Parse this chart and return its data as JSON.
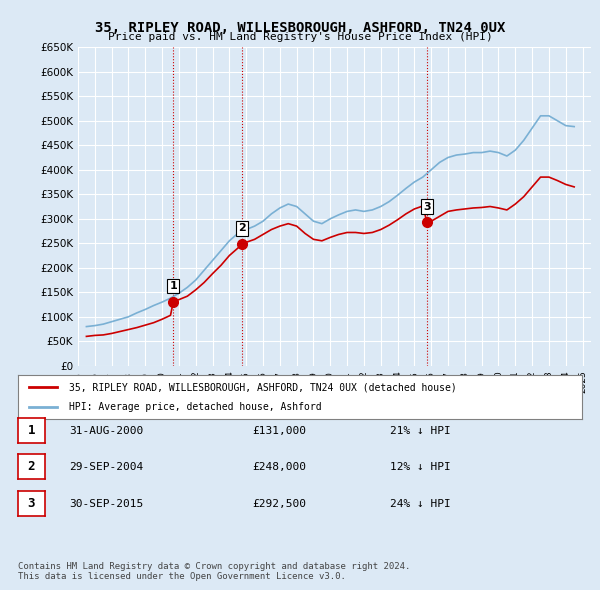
{
  "title": "35, RIPLEY ROAD, WILLESBOROUGH, ASHFORD, TN24 0UX",
  "subtitle": "Price paid vs. HM Land Registry's House Price Index (HPI)",
  "ylabel": "",
  "ylim": [
    0,
    650000
  ],
  "yticks": [
    0,
    50000,
    100000,
    150000,
    200000,
    250000,
    300000,
    350000,
    400000,
    450000,
    500000,
    550000,
    600000,
    650000
  ],
  "xlim_start": 1995.5,
  "xlim_end": 2025.5,
  "bg_color": "#dce9f5",
  "plot_bg": "#dce9f5",
  "grid_color": "#ffffff",
  "sale_color": "#cc0000",
  "hpi_color": "#7ab0d4",
  "sale_points": [
    {
      "year": 2000.667,
      "price": 131000,
      "label": "1"
    },
    {
      "year": 2004.75,
      "price": 248000,
      "label": "2"
    },
    {
      "year": 2015.75,
      "price": 292500,
      "label": "3"
    }
  ],
  "vline_years": [
    2000.667,
    2004.75,
    2015.75
  ],
  "vline_color": "#cc0000",
  "legend_sale_label": "35, RIPLEY ROAD, WILLESBOROUGH, ASHFORD, TN24 0UX (detached house)",
  "legend_hpi_label": "HPI: Average price, detached house, Ashford",
  "table_rows": [
    {
      "num": "1",
      "date": "31-AUG-2000",
      "price": "£131,000",
      "pct": "21% ↓ HPI"
    },
    {
      "num": "2",
      "date": "29-SEP-2004",
      "price": "£248,000",
      "pct": "12% ↓ HPI"
    },
    {
      "num": "3",
      "date": "30-SEP-2015",
      "price": "£292,500",
      "pct": "24% ↓ HPI"
    }
  ],
  "footer": "Contains HM Land Registry data © Crown copyright and database right 2024.\nThis data is licensed under the Open Government Licence v3.0.",
  "hpi_data": {
    "years": [
      1995.5,
      1996.0,
      1996.5,
      1997.0,
      1997.5,
      1998.0,
      1998.5,
      1999.0,
      1999.5,
      2000.0,
      2000.5,
      2001.0,
      2001.5,
      2002.0,
      2002.5,
      2003.0,
      2003.5,
      2004.0,
      2004.5,
      2005.0,
      2005.5,
      2006.0,
      2006.5,
      2007.0,
      2007.5,
      2008.0,
      2008.5,
      2009.0,
      2009.5,
      2010.0,
      2010.5,
      2011.0,
      2011.5,
      2012.0,
      2012.5,
      2013.0,
      2013.5,
      2014.0,
      2014.5,
      2015.0,
      2015.5,
      2016.0,
      2016.5,
      2017.0,
      2017.5,
      2018.0,
      2018.5,
      2019.0,
      2019.5,
      2020.0,
      2020.5,
      2021.0,
      2021.5,
      2022.0,
      2022.5,
      2023.0,
      2023.5,
      2024.0,
      2024.5
    ],
    "values": [
      80000,
      82000,
      85000,
      90000,
      95000,
      100000,
      108000,
      115000,
      123000,
      130000,
      138000,
      148000,
      160000,
      175000,
      195000,
      215000,
      235000,
      255000,
      270000,
      278000,
      285000,
      295000,
      310000,
      322000,
      330000,
      325000,
      310000,
      295000,
      290000,
      300000,
      308000,
      315000,
      318000,
      315000,
      318000,
      325000,
      335000,
      348000,
      362000,
      375000,
      385000,
      400000,
      415000,
      425000,
      430000,
      432000,
      435000,
      435000,
      438000,
      435000,
      428000,
      440000,
      460000,
      485000,
      510000,
      510000,
      500000,
      490000,
      488000
    ]
  },
  "sale_line_data": {
    "years": [
      1995.5,
      1996.0,
      1996.5,
      1997.0,
      1997.5,
      1998.0,
      1998.5,
      1999.0,
      1999.5,
      2000.0,
      2000.5,
      2000.667,
      2001.0,
      2001.5,
      2002.0,
      2002.5,
      2003.0,
      2003.5,
      2004.0,
      2004.5,
      2004.75,
      2005.0,
      2005.5,
      2006.0,
      2006.5,
      2007.0,
      2007.5,
      2008.0,
      2008.5,
      2009.0,
      2009.5,
      2010.0,
      2010.5,
      2011.0,
      2011.5,
      2012.0,
      2012.5,
      2013.0,
      2013.5,
      2014.0,
      2014.5,
      2015.0,
      2015.5,
      2015.75,
      2016.0,
      2016.5,
      2017.0,
      2017.5,
      2018.0,
      2018.5,
      2019.0,
      2019.5,
      2020.0,
      2020.5,
      2021.0,
      2021.5,
      2022.0,
      2022.5,
      2023.0,
      2023.5,
      2024.0,
      2024.5
    ],
    "values": [
      60000,
      62000,
      63000,
      66000,
      70000,
      74000,
      78000,
      83000,
      88000,
      95000,
      103000,
      131000,
      135000,
      142000,
      155000,
      170000,
      188000,
      205000,
      225000,
      240000,
      248000,
      252000,
      258000,
      268000,
      278000,
      285000,
      290000,
      285000,
      270000,
      258000,
      255000,
      262000,
      268000,
      272000,
      272000,
      270000,
      272000,
      278000,
      287000,
      298000,
      310000,
      320000,
      326000,
      292500,
      295000,
      305000,
      315000,
      318000,
      320000,
      322000,
      323000,
      325000,
      322000,
      318000,
      330000,
      345000,
      365000,
      385000,
      385000,
      378000,
      370000,
      365000
    ]
  }
}
